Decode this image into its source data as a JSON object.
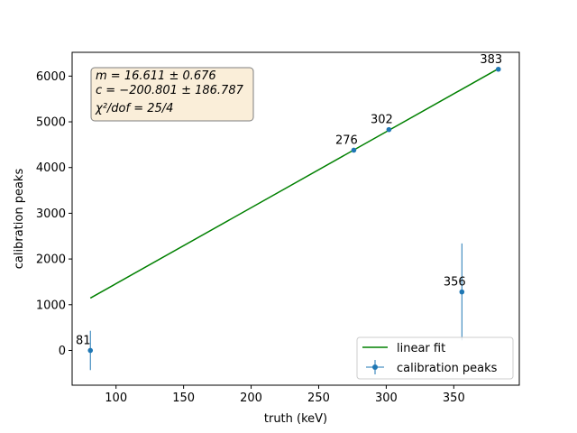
{
  "chart_data": {
    "type": "scatter",
    "title": "",
    "xlabel": "truth (keV)",
    "ylabel": "calibration peaks",
    "xlim": [
      67.5,
      398.5
    ],
    "ylim": [
      -760,
      6520
    ],
    "xticks": [
      100,
      150,
      200,
      250,
      300,
      350
    ],
    "yticks": [
      0,
      1000,
      2000,
      3000,
      4000,
      5000,
      6000
    ],
    "grid": false,
    "legend_position": "lower-right",
    "series": [
      {
        "name": "linear fit",
        "kind": "line",
        "color": "#008000",
        "x": [
          81,
          383
        ],
        "y": [
          1144.7,
          6161.2
        ]
      },
      {
        "name": "calibration peaks",
        "kind": "errorbar",
        "color": "#1f77b4",
        "x": [
          81,
          276,
          302,
          356,
          383
        ],
        "y": [
          0,
          4380,
          4830,
          1280,
          6150
        ],
        "yerr": [
          430,
          35,
          35,
          1060,
          35
        ],
        "point_labels": [
          "81",
          "276",
          "302",
          "356",
          "383"
        ]
      }
    ],
    "annotation": {
      "lines": [
        "m = 16.611 ± 0.676",
        "c = −200.801 ± 186.787",
        "χ²/dof = 25/4"
      ],
      "background": "#f5deb3",
      "position": "top-left"
    }
  }
}
